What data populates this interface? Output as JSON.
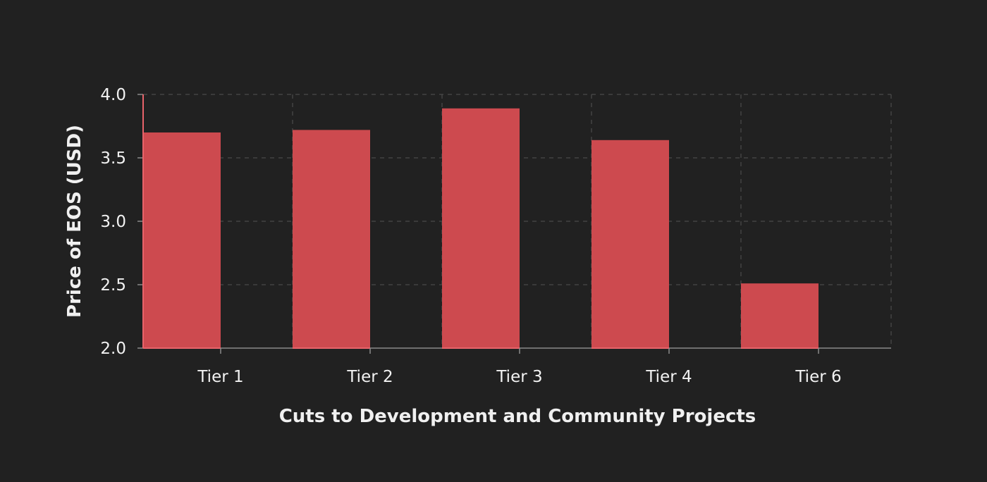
{
  "chart_data": {
    "type": "bar",
    "xlabel": "Cuts to Development and Community Projects",
    "ylabel": "Price of EOS (USD)",
    "categories": [
      "Tier 1",
      "Tier 2",
      "Tier 3",
      "Tier 4",
      "Tier 6"
    ],
    "series": [
      {
        "values": [
          3.7,
          3.72,
          3.89,
          3.64,
          2.51
        ]
      }
    ],
    "ylim": [
      2.0,
      4.0
    ],
    "yticks": [
      "2.0",
      "2.5",
      "3.0",
      "3.5",
      "4.0"
    ],
    "grid": true,
    "bar_color": "#cd4a4f",
    "baseline_color": "#e8636a",
    "background": "#212121"
  }
}
